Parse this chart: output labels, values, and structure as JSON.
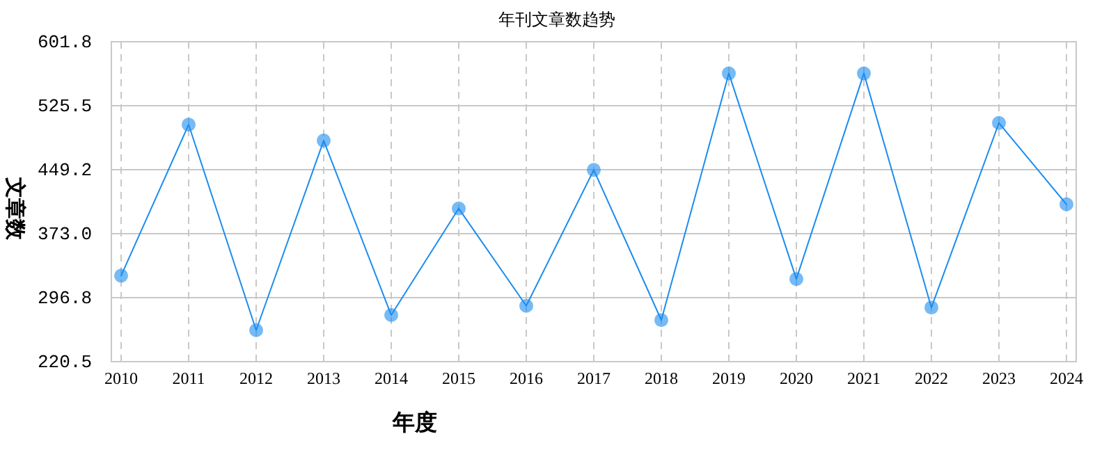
{
  "chart_data": {
    "type": "line",
    "title": "年刊文章数趋势",
    "xlabel": "年度",
    "ylabel": "文章数",
    "categories": [
      "2010",
      "2011",
      "2012",
      "2013",
      "2014",
      "2015",
      "2016",
      "2017",
      "2018",
      "2019",
      "2020",
      "2021",
      "2022",
      "2023",
      "2024"
    ],
    "series": [
      {
        "color": "#1a8cf0",
        "values": [
          323,
          503,
          258,
          484,
          276,
          403,
          287,
          449,
          270,
          564,
          319,
          564,
          285,
          505,
          408
        ]
      }
    ],
    "ylim": [
      220.5,
      601.8
    ],
    "yticks": [
      {
        "value": 220.5,
        "label": "220.5"
      },
      {
        "value": 296.8,
        "label": "296.8"
      },
      {
        "value": 373.0,
        "label": "373.0"
      },
      {
        "value": 449.2,
        "label": "449.2"
      },
      {
        "value": 525.5,
        "label": "525.5"
      },
      {
        "value": 601.8,
        "label": "601.8"
      }
    ],
    "grid": true,
    "marker": "circle",
    "line_style": "solid"
  }
}
